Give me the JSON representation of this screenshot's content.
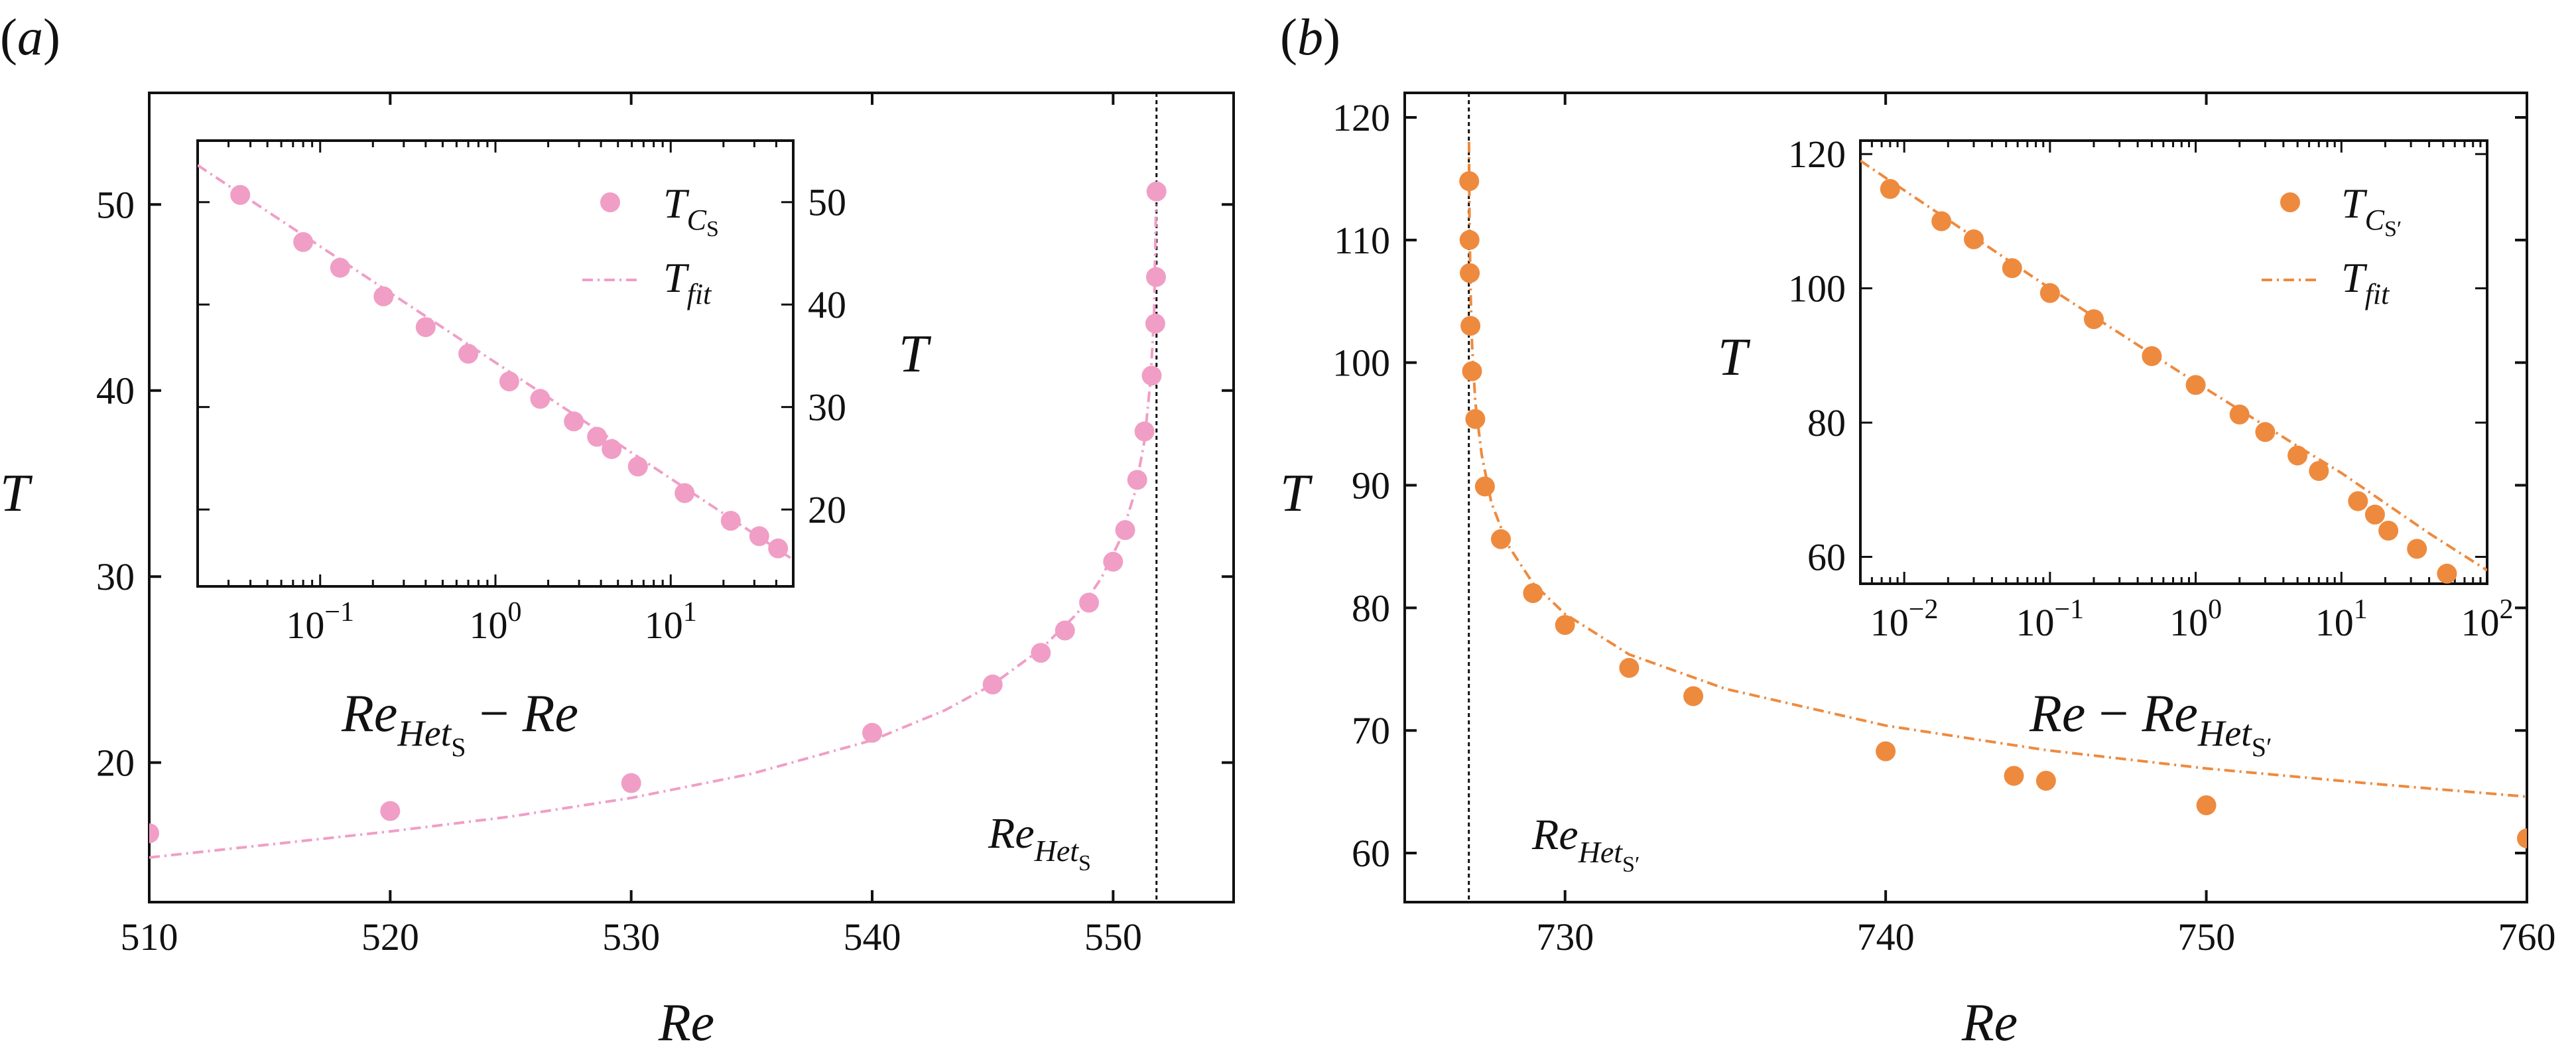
{
  "chart_data": [
    {
      "type": "scatter",
      "panel_label": "(a)",
      "xlabel": "Re",
      "ylabel": "T",
      "xlim": [
        510,
        555
      ],
      "ylim": [
        12.5,
        56
      ],
      "xticks": [
        "510",
        "520",
        "530",
        "540",
        "550"
      ],
      "yticks": [
        "20",
        "30",
        "40",
        "50"
      ],
      "color": "#f09ec6",
      "critical_re": 551.8,
      "critical_label": "Re_Het_S",
      "series": [
        {
          "name": "T_C_S",
          "x": [
            510,
            520,
            530,
            540,
            545,
            547,
            548,
            549,
            550,
            550.5,
            551,
            551.3,
            551.6,
            551.75,
            551.78,
            551.8
          ],
          "y": [
            16.2,
            17.4,
            18.9,
            21.6,
            24.2,
            25.9,
            27.1,
            28.6,
            30.8,
            32.5,
            35.2,
            37.8,
            40.8,
            43.6,
            46.1,
            50.7
          ]
        },
        {
          "name": "T_fit",
          "style": "dashdot",
          "x": [
            510,
            515,
            520,
            525,
            530,
            535,
            540,
            543,
            545,
            547,
            548.5,
            549.5,
            550.3,
            550.9,
            551.3,
            551.55,
            551.7,
            551.78
          ],
          "y": [
            14.9,
            15.6,
            16.3,
            17.1,
            18.1,
            19.4,
            21.2,
            22.8,
            24.2,
            26.1,
            28.0,
            29.9,
            32.0,
            34.5,
            37.3,
            40.5,
            44.0,
            50.0
          ]
        }
      ],
      "inset": {
        "type": "scatter",
        "xscale": "log",
        "xlabel": "Re_Het_S − Re",
        "ylabel": "T",
        "xlim": [
          0.02,
          50
        ],
        "ylim": [
          12.5,
          56
        ],
        "xticks": [
          "10^-1",
          "10^0",
          "10^1"
        ],
        "yticks": [
          "20",
          "30",
          "40",
          "50"
        ],
        "series": [
          {
            "name": "T_C_S",
            "x": [
              0.035,
              0.08,
              0.13,
              0.23,
              0.4,
              0.7,
              1.2,
              1.8,
              2.8,
              3.8,
              4.6,
              6.5,
              12,
              22,
              32,
              41
            ],
            "y": [
              50.7,
              46.1,
              43.6,
              40.8,
              37.8,
              35.2,
              32.5,
              30.8,
              28.6,
              27.1,
              25.9,
              24.2,
              21.6,
              18.9,
              17.4,
              16.2
            ]
          },
          {
            "name": "T_fit",
            "style": "dashdot",
            "x": [
              0.02,
              50
            ],
            "y": [
              53.6,
              15.1
            ]
          }
        ]
      }
    },
    {
      "type": "scatter",
      "panel_label": "(b)",
      "xlabel": "Re",
      "ylabel": "T",
      "xlim": [
        725,
        760
      ],
      "ylim": [
        56,
        122
      ],
      "xticks": [
        "730",
        "740",
        "750",
        "760"
      ],
      "yticks": [
        "60",
        "70",
        "80",
        "90",
        "100",
        "110",
        "120"
      ],
      "color": "#ee8a3e",
      "critical_re": 727,
      "critical_label": "Re_Het_S'",
      "series": [
        {
          "name": "T_C_S'",
          "x": [
            727.01,
            727.02,
            727.03,
            727.05,
            727.1,
            727.2,
            727.5,
            728,
            729,
            730,
            732,
            734,
            740,
            744,
            745,
            750,
            760
          ],
          "y": [
            114.8,
            110,
            107.3,
            103,
            99.3,
            95.4,
            89.9,
            85.6,
            81.2,
            78.6,
            75.1,
            72.8,
            68.3,
            66.3,
            65.9,
            63.9,
            61.2
          ]
        },
        {
          "name": "T_fit",
          "style": "dashdot",
          "x": [
            727.005,
            727.02,
            727.05,
            727.1,
            727.2,
            727.4,
            727.7,
            728.2,
            729,
            730,
            732,
            735,
            740,
            745,
            750,
            755,
            760
          ],
          "y": [
            118,
            111.5,
            106.2,
            101.5,
            96.8,
            92.5,
            88.6,
            85.2,
            82.0,
            79.5,
            76.2,
            73.4,
            70.4,
            68.4,
            66.9,
            65.7,
            64.6
          ]
        }
      ],
      "inset": {
        "type": "scatter",
        "xscale": "log",
        "xlabel": "Re − Re_Het_S'",
        "ylabel": "T",
        "xlim": [
          0.005,
          100
        ],
        "ylim": [
          56,
          122
        ],
        "xticks": [
          "10^-2",
          "10^-1",
          "10^0",
          "10^1",
          "10^2"
        ],
        "yticks": [
          "60",
          "80",
          "100",
          "120"
        ],
        "series": [
          {
            "name": "T_C_S'",
            "x": [
              0.008,
              0.018,
              0.03,
              0.055,
              0.1,
              0.2,
              0.5,
              1,
              2,
              3,
              5,
              7,
              13,
              17,
              21,
              33,
              53
            ],
            "y": [
              114.8,
              110,
              107.3,
              103,
              99.3,
              95.4,
              89.9,
              85.6,
              81.2,
              78.6,
              75.1,
              72.8,
              68.3,
              66.3,
              63.9,
              61.2,
              57.5
            ]
          },
          {
            "name": "T_fit",
            "style": "dashdot",
            "x": [
              0.005,
              0.1,
              1,
              5,
              10,
              20,
              40,
              100
            ],
            "y": [
              119,
              100,
              86,
              76.5,
              72.5,
              68,
              63.5,
              58
            ]
          }
        ]
      }
    }
  ]
}
